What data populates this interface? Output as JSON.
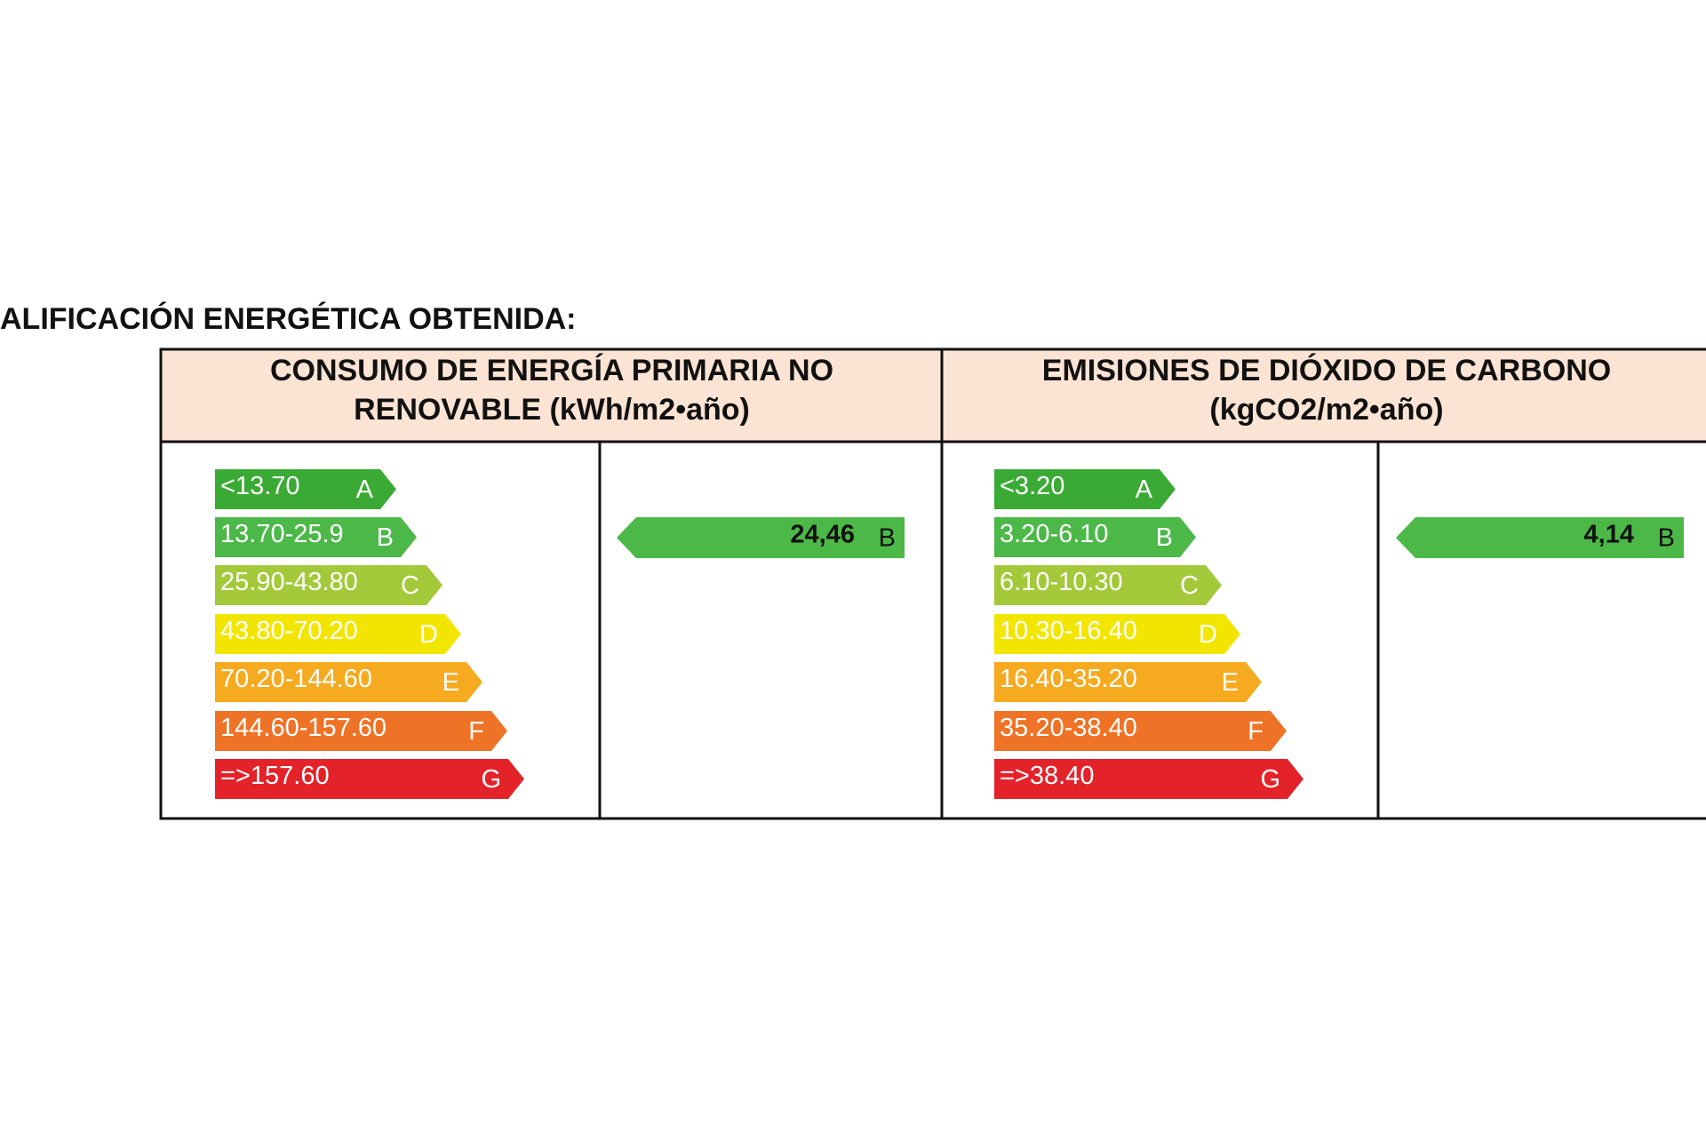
{
  "title": "ALIFICACIÓN ENERGÉTICA OBTENIDA:",
  "panels": [
    {
      "header": [
        "CONSUMO  DE ENERGÍA PRIMARIA NO",
        "RENOVABLE (kWh/m2•año)"
      ],
      "ratings": [
        {
          "range": "<13.70",
          "letter": "A",
          "color": "#3aaa35"
        },
        {
          "range": "13.70-25.9",
          "letter": "B",
          "color": "#4cb848"
        },
        {
          "range": "25.90-43.80",
          "letter": "C",
          "color": "#a3c93a"
        },
        {
          "range": "43.80-70.20",
          "letter": "D",
          "color": "#f2e600"
        },
        {
          "range": "70.20-144.60",
          "letter": "E",
          "color": "#f6aa1f"
        },
        {
          "range": "144.60-157.60",
          "letter": "F",
          "color": "#ee7326"
        },
        {
          "range": "=>157.60",
          "letter": "G",
          "color": "#e3222a"
        }
      ],
      "result": {
        "value": "24,46",
        "letter": "B",
        "color": "#4cb848"
      }
    },
    {
      "header": [
        "EMISIONES DE DIÓXIDO DE CARBONO",
        "(kgCO2/m2•año)"
      ],
      "ratings": [
        {
          "range": "<3.20",
          "letter": "A",
          "color": "#3aaa35"
        },
        {
          "range": "3.20-6.10",
          "letter": "B",
          "color": "#4cb848"
        },
        {
          "range": "6.10-10.30",
          "letter": "C",
          "color": "#a3c93a"
        },
        {
          "range": "10.30-16.40",
          "letter": "D",
          "color": "#f2e600"
        },
        {
          "range": "16.40-35.20",
          "letter": "E",
          "color": "#f6aa1f"
        },
        {
          "range": "35.20-38.40",
          "letter": "F",
          "color": "#ee7326"
        },
        {
          "range": "=>38.40",
          "letter": "G",
          "color": "#e3222a"
        }
      ],
      "result": {
        "value": "4,14",
        "letter": "B",
        "color": "#4cb848"
      }
    }
  ]
}
